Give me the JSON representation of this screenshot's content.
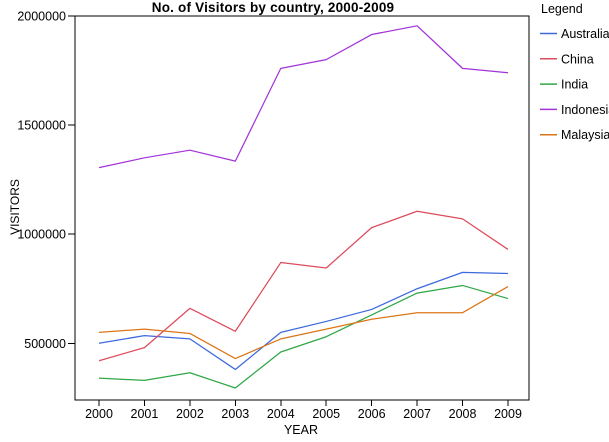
{
  "chart_data": {
    "type": "line",
    "title": "No. of Visitors by country, 2000-2009",
    "xlabel": "YEAR",
    "ylabel": "VISITORS",
    "legend_title": "Legend",
    "legend_position": "right",
    "grid": false,
    "x": [
      2000,
      2001,
      2002,
      2003,
      2004,
      2005,
      2006,
      2007,
      2008,
      2009
    ],
    "xtick_labels": [
      "2000",
      "2001",
      "2002",
      "2003",
      "2004",
      "2005",
      "2006",
      "2007",
      "2008",
      "2009"
    ],
    "ylim": [
      240000,
      2000000
    ],
    "yticks": [
      500000,
      1000000,
      1500000,
      2000000
    ],
    "ytick_labels": [
      "500000",
      "1000000",
      "1500000",
      "2000000"
    ],
    "axis_color": "#000000",
    "background_color": "#ffffff",
    "series": [
      {
        "name": "Australia",
        "color": "#3D69DD",
        "values": [
          500000,
          535000,
          520000,
          380000,
          550000,
          600000,
          655000,
          750000,
          825000,
          820000
        ]
      },
      {
        "name": "China",
        "color": "#DC4C5C",
        "values": [
          420000,
          480000,
          660000,
          555000,
          870000,
          845000,
          1030000,
          1105000,
          1070000,
          930000
        ]
      },
      {
        "name": "India",
        "color": "#2EA746",
        "values": [
          340000,
          330000,
          365000,
          295000,
          460000,
          530000,
          630000,
          730000,
          765000,
          705000
        ]
      },
      {
        "name": "Indonesia",
        "color": "#A233D9",
        "values": [
          1305000,
          1350000,
          1385000,
          1335000,
          1760000,
          1800000,
          1915000,
          1955000,
          1760000,
          1740000
        ]
      },
      {
        "name": "Malaysia",
        "color": "#DB7617",
        "values": [
          550000,
          565000,
          545000,
          430000,
          520000,
          565000,
          610000,
          640000,
          640000,
          760000
        ]
      }
    ]
  }
}
